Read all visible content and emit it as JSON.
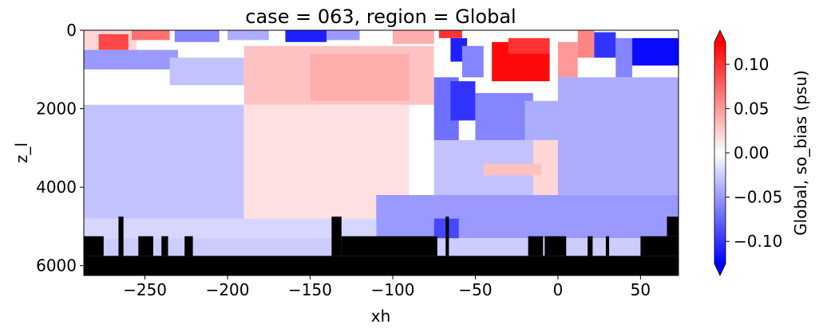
{
  "chart_data": {
    "type": "heatmap",
    "title": "case = 063, region = Global",
    "xlabel": "xh",
    "ylabel": "z_l",
    "xlim": [
      -287,
      73
    ],
    "ylim": [
      6250,
      0
    ],
    "x_ticks": [
      -250,
      -200,
      -150,
      -100,
      -50,
      0,
      50
    ],
    "x_tick_labels": [
      "−250",
      "−200",
      "−150",
      "−100",
      "−50",
      "0",
      "50"
    ],
    "y_ticks": [
      0,
      2000,
      4000,
      6000
    ],
    "y_tick_labels": [
      "0",
      "2000",
      "4000",
      "6000"
    ],
    "colorbar": {
      "label": "Global, so_bias (psu)",
      "vmin": -0.125,
      "vmax": 0.125,
      "ticks": [
        -0.1,
        -0.05,
        0.0,
        0.05,
        0.1
      ],
      "tick_labels": [
        "−0.10",
        "−0.05",
        "0.00",
        "0.05",
        "0.10"
      ],
      "colormap": "bwr",
      "extend": "both"
    },
    "fields": [
      {
        "x0": -287,
        "x1": -255,
        "z0": 0,
        "z1": 500,
        "v": 0.02
      },
      {
        "x0": -278,
        "x1": -260,
        "z0": 100,
        "z1": 500,
        "v": 0.09
      },
      {
        "x0": -258,
        "x1": -235,
        "z0": 0,
        "z1": 250,
        "v": 0.07
      },
      {
        "x0": -232,
        "x1": -205,
        "z0": 0,
        "z1": 300,
        "v": -0.06
      },
      {
        "x0": -200,
        "x1": -175,
        "z0": 0,
        "z1": 250,
        "v": -0.04
      },
      {
        "x0": -165,
        "x1": -140,
        "z0": 0,
        "z1": 300,
        "v": -0.11
      },
      {
        "x0": -140,
        "x1": -120,
        "z0": 0,
        "z1": 250,
        "v": -0.05
      },
      {
        "x0": -100,
        "x1": -75,
        "z0": 0,
        "z1": 350,
        "v": 0.04
      },
      {
        "x0": -72,
        "x1": -58,
        "z0": 0,
        "z1": 200,
        "v": 0.1
      },
      {
        "x0": -65,
        "x1": -55,
        "z0": 200,
        "z1": 800,
        "v": -0.11
      },
      {
        "x0": -58,
        "x1": -45,
        "z0": 400,
        "z1": 1200,
        "v": -0.06
      },
      {
        "x0": -40,
        "x1": -5,
        "z0": 300,
        "z1": 1300,
        "v": 0.12
      },
      {
        "x0": -30,
        "x1": -5,
        "z0": 200,
        "z1": 600,
        "v": 0.1
      },
      {
        "x0": 0,
        "x1": 12,
        "z0": 300,
        "z1": 1200,
        "v": 0.05
      },
      {
        "x0": 12,
        "x1": 22,
        "z0": 0,
        "z1": 700,
        "v": 0.06
      },
      {
        "x0": 22,
        "x1": 35,
        "z0": 50,
        "z1": 700,
        "v": -0.1
      },
      {
        "x0": 35,
        "x1": 45,
        "z0": 200,
        "z1": 1200,
        "v": -0.06
      },
      {
        "x0": 45,
        "x1": 73,
        "z0": 200,
        "z1": 900,
        "v": -0.12
      },
      {
        "x0": -287,
        "x1": -230,
        "z0": 500,
        "z1": 1000,
        "v": -0.05
      },
      {
        "x0": -235,
        "x1": -190,
        "z0": 700,
        "z1": 1400,
        "v": -0.03
      },
      {
        "x0": -190,
        "x1": -75,
        "z0": 400,
        "z1": 1900,
        "v": 0.03
      },
      {
        "x0": -150,
        "x1": -90,
        "z0": 600,
        "z1": 1800,
        "v": 0.04
      },
      {
        "x0": -75,
        "x1": -60,
        "z0": 1200,
        "z1": 2800,
        "v": -0.07
      },
      {
        "x0": -65,
        "x1": -50,
        "z0": 1300,
        "z1": 2300,
        "v": -0.1
      },
      {
        "x0": -50,
        "x1": -15,
        "z0": 1600,
        "z1": 2800,
        "v": -0.06
      },
      {
        "x0": -20,
        "x1": 10,
        "z0": 1800,
        "z1": 3000,
        "v": -0.04
      },
      {
        "x0": -287,
        "x1": -190,
        "z0": 1900,
        "z1": 4800,
        "v": -0.03
      },
      {
        "x0": -190,
        "x1": -90,
        "z0": 1900,
        "z1": 4800,
        "v": 0.015
      },
      {
        "x0": -75,
        "x1": 0,
        "z0": 2800,
        "z1": 4800,
        "v": -0.03
      },
      {
        "x0": -15,
        "x1": 5,
        "z0": 2800,
        "z1": 4200,
        "v": 0.02
      },
      {
        "x0": -45,
        "x1": -10,
        "z0": 3400,
        "z1": 3700,
        "v": 0.03
      },
      {
        "x0": 0,
        "x1": 73,
        "z0": 1200,
        "z1": 4800,
        "v": -0.04
      },
      {
        "x0": -110,
        "x1": 73,
        "z0": 4200,
        "z1": 5300,
        "v": -0.05
      },
      {
        "x0": -287,
        "x1": -110,
        "z0": 4800,
        "z1": 5300,
        "v": -0.02
      },
      {
        "x0": -75,
        "x1": -60,
        "z0": 4800,
        "z1": 5500,
        "v": -0.09
      },
      {
        "x0": -287,
        "x1": 73,
        "z0": 5300,
        "z1": 5750,
        "v": -0.025
      }
    ],
    "masks": [
      {
        "x0": -287,
        "x1": 73,
        "z0": 5750,
        "z1": 6250
      },
      {
        "x0": -287,
        "x1": -275,
        "z0": 5250,
        "z1": 5750
      },
      {
        "x0": -266,
        "x1": -263,
        "z0": 4750,
        "z1": 5750
      },
      {
        "x0": -254,
        "x1": -245,
        "z0": 5250,
        "z1": 5750
      },
      {
        "x0": -240,
        "x1": -236,
        "z0": 5250,
        "z1": 5750
      },
      {
        "x0": -226,
        "x1": -221,
        "z0": 5250,
        "z1": 5750
      },
      {
        "x0": -137,
        "x1": -131,
        "z0": 4750,
        "z1": 5750
      },
      {
        "x0": -131,
        "x1": -73,
        "z0": 5250,
        "z1": 5750
      },
      {
        "x0": -68,
        "x1": -66,
        "z0": 4750,
        "z1": 5750
      },
      {
        "x0": -18,
        "x1": -9,
        "z0": 5250,
        "z1": 5750
      },
      {
        "x0": -8,
        "x1": 5,
        "z0": 5250,
        "z1": 5750
      },
      {
        "x0": 18,
        "x1": 21,
        "z0": 5250,
        "z1": 5750
      },
      {
        "x0": 29,
        "x1": 31,
        "z0": 5250,
        "z1": 5750
      },
      {
        "x0": 50,
        "x1": 73,
        "z0": 5250,
        "z1": 5750
      },
      {
        "x0": 66,
        "x1": 73,
        "z0": 4750,
        "z1": 5250
      }
    ]
  }
}
